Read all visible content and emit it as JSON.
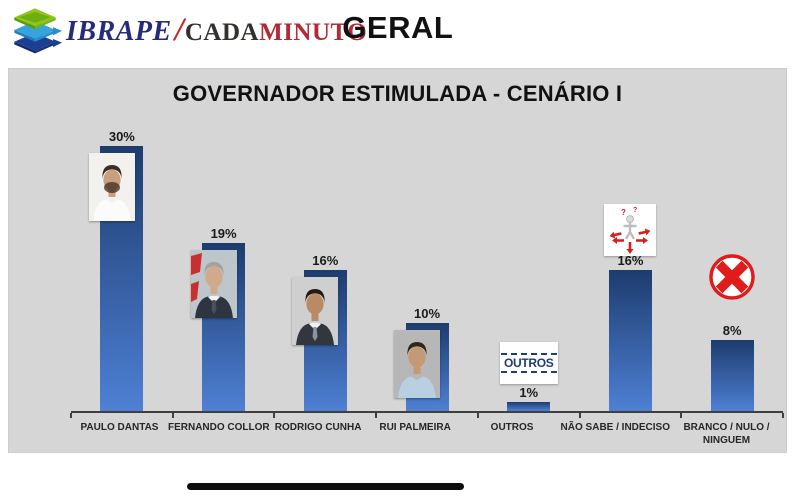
{
  "header": {
    "brand_ibrape": "IBRAPE",
    "brand_slash": "/",
    "brand_cada": "CADA",
    "brand_minuto": "MINUTO",
    "page_title": "GERAL"
  },
  "chart_data": {
    "type": "bar",
    "title": "GOVERNADOR ESTIMULADA - CENÁRIO I",
    "categories": [
      "PAULO DANTAS",
      "FERNANDO COLLOR",
      "RODRIGO CUNHA",
      "RUI PALMEIRA",
      "OUTROS",
      "NÃO SABE / INDECISO",
      "BRANCO / NULO / NINGUEM"
    ],
    "values": [
      30,
      19,
      16,
      10,
      1,
      16,
      8
    ],
    "value_labels": [
      "30%",
      "19%",
      "16%",
      "10%",
      "1%",
      "16%",
      "8%"
    ],
    "xlabel": "",
    "ylabel": "",
    "ylim": [
      0,
      32
    ],
    "grid": false,
    "legend": false,
    "bar_gradient": [
      "#1d3c6e",
      "#4e80d4"
    ],
    "axis_color": "#3f3f3f",
    "panel_bg": "#d6d6d6",
    "markers": [
      {
        "kind": "photo",
        "name": "paulo-dantas-photo"
      },
      {
        "kind": "photo",
        "name": "fernando-collor-photo"
      },
      {
        "kind": "photo",
        "name": "rodrigo-cunha-photo"
      },
      {
        "kind": "photo",
        "name": "rui-palmeira-photo"
      },
      {
        "kind": "label-box",
        "name": "outros-box",
        "text": "OUTROS"
      },
      {
        "kind": "indecision-icon",
        "name": "indecision-icon"
      },
      {
        "kind": "cancel-icon",
        "name": "cancel-icon"
      }
    ]
  },
  "portraits": [
    {
      "bg": "#f3f1ee",
      "hair": "#3b2d22",
      "skin": "#c9a07e",
      "shirt": "#fbfbfb",
      "beard": true
    },
    {
      "bg": "#bcc6cb",
      "hair": "#a3a39c",
      "skin": "#d2a98a",
      "shirt": "#2e3440",
      "tie": "#4a4f63",
      "flag": true
    },
    {
      "bg": "#cfcfcf",
      "hair": "#241b12",
      "skin": "#b98a64",
      "shirt": "#33363d",
      "tie": "#8b93a5"
    },
    {
      "bg": "#b7b7b7",
      "hair": "#2f261d",
      "skin": "#c49a76",
      "shirt": "#b9d0e2"
    }
  ],
  "ui_colors": {
    "outros_navy": "#1f3c7a",
    "x_red": "#e01b1b",
    "icon_red": "#d42020",
    "brand_navy": "#252a7d",
    "brand_red": "#c42727",
    "bottom_bar": "#0d0d0d"
  }
}
